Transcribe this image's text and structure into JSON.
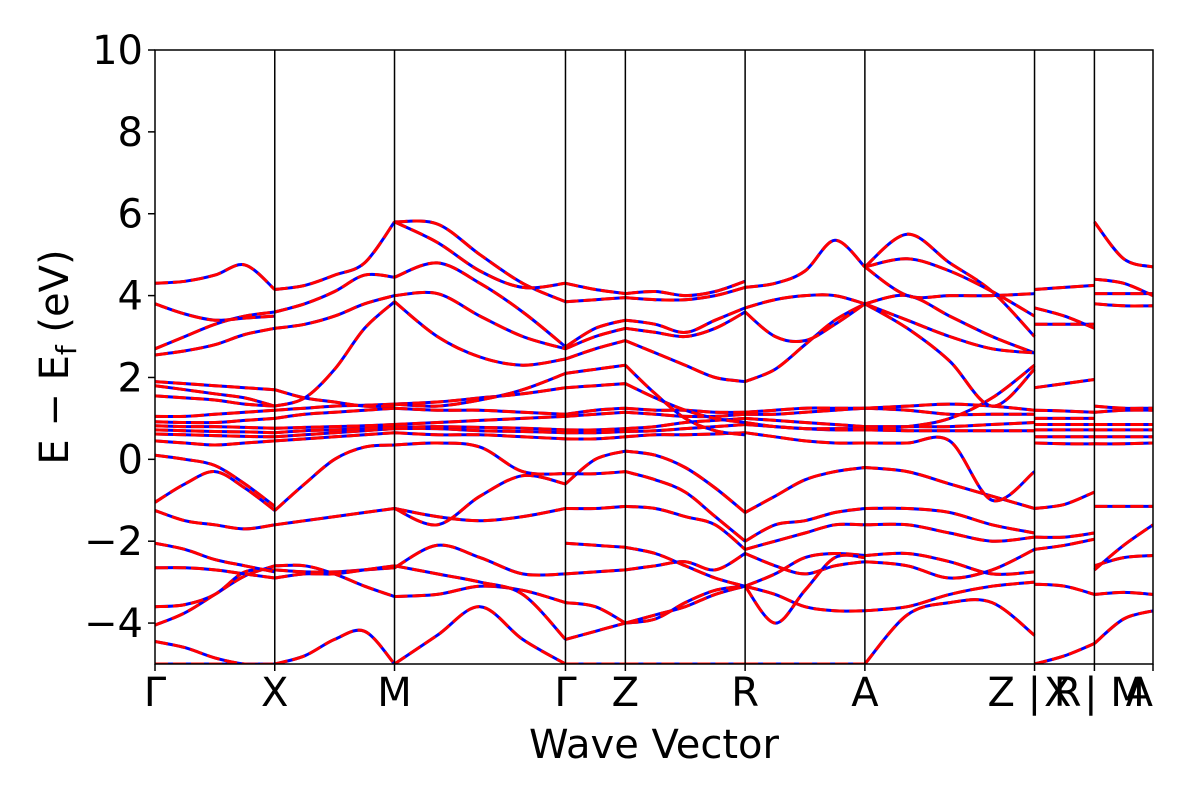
{
  "chart_data": {
    "type": "line",
    "title": "",
    "xlabel": "Wave Vector",
    "ylabel_parts": {
      "main": "E − E",
      "sub": "f",
      "unit": " (eV)"
    },
    "ylim": [
      -5,
      10
    ],
    "yticks": [
      {
        "value": -4,
        "label": "−4"
      },
      {
        "value": -2,
        "label": "−2"
      },
      {
        "value": 0,
        "label": "0"
      },
      {
        "value": 2,
        "label": "2"
      },
      {
        "value": 4,
        "label": "4"
      },
      {
        "value": 6,
        "label": "6"
      },
      {
        "value": 8,
        "label": "8"
      },
      {
        "value": 10,
        "label": "10"
      }
    ],
    "kpath": {
      "length": 1.0,
      "ticks": [
        {
          "pos": 0.0,
          "label": "Γ"
        },
        {
          "pos": 0.12,
          "label": "X"
        },
        {
          "pos": 0.24,
          "label": "M"
        },
        {
          "pos": 0.4113,
          "label": "Γ"
        },
        {
          "pos": 0.4713,
          "label": "Z"
        },
        {
          "pos": 0.5913,
          "label": "R"
        },
        {
          "pos": 0.7113,
          "label": "A"
        },
        {
          "pos": 0.8813,
          "label": "Z | R"
        },
        {
          "pos": 0.9413,
          "label": "X | M"
        },
        {
          "pos": 1.0,
          "label": "A"
        }
      ]
    },
    "band_style": {
      "solid_color": "#0000ff",
      "dashed_color": "#ff0000",
      "grid": false,
      "legend": "none"
    },
    "segments": [
      {
        "from": 0.0,
        "to": 0.12,
        "bands": [
          [
            -5.0,
            -5.0,
            -5.0,
            -5.0,
            -5.0
          ],
          [
            -4.45,
            -4.6,
            -4.85,
            -5.0,
            -5.0
          ],
          [
            -4.05,
            -3.75,
            -3.3,
            -2.85,
            -2.6
          ],
          [
            -3.6,
            -3.55,
            -3.3,
            -2.75,
            -2.7
          ],
          [
            -2.65,
            -2.65,
            -2.7,
            -2.8,
            -2.9
          ],
          [
            -2.05,
            -2.2,
            -2.45,
            -2.6,
            -2.75
          ],
          [
            -1.25,
            -1.5,
            -1.6,
            -1.7,
            -1.6
          ],
          [
            -1.05,
            -0.6,
            -0.3,
            -0.7,
            -1.25
          ],
          [
            0.1,
            0.0,
            -0.15,
            -0.6,
            -1.15
          ],
          [
            0.45,
            0.4,
            0.35,
            0.4,
            0.45
          ],
          [
            0.62,
            0.6,
            0.58,
            0.56,
            0.55
          ],
          [
            0.72,
            0.7,
            0.68,
            0.67,
            0.65
          ],
          [
            0.82,
            0.8,
            0.8,
            0.78,
            0.76
          ],
          [
            0.92,
            0.9,
            0.9,
            0.95,
            1.0
          ],
          [
            1.05,
            1.05,
            1.1,
            1.15,
            1.2
          ],
          [
            1.55,
            1.5,
            1.45,
            1.35,
            1.3
          ],
          [
            1.8,
            1.7,
            1.6,
            1.5,
            1.3
          ],
          [
            1.9,
            1.85,
            1.8,
            1.75,
            1.7
          ],
          [
            2.55,
            2.65,
            2.8,
            3.05,
            3.2
          ],
          [
            2.7,
            3.0,
            3.3,
            3.5,
            3.6
          ],
          [
            3.8,
            3.55,
            3.4,
            3.45,
            3.5
          ],
          [
            4.3,
            4.35,
            4.5,
            4.75,
            4.15
          ]
        ]
      },
      {
        "from": 0.12,
        "to": 0.24,
        "bands": [
          [
            -5.0,
            -4.8,
            -4.4,
            -4.2,
            -5.0
          ],
          [
            -2.6,
            -2.6,
            -2.8,
            -3.1,
            -3.35
          ],
          [
            -2.7,
            -2.75,
            -2.75,
            -2.7,
            -2.65
          ],
          [
            -2.9,
            -2.8,
            -2.8,
            -2.7,
            -2.6
          ],
          [
            -1.6,
            -1.5,
            -1.4,
            -1.3,
            -1.2
          ],
          [
            -1.25,
            -0.6,
            0.0,
            0.3,
            0.35
          ],
          [
            0.45,
            0.5,
            0.55,
            0.6,
            0.65
          ],
          [
            0.55,
            0.6,
            0.65,
            0.7,
            0.75
          ],
          [
            0.65,
            0.7,
            0.72,
            0.75,
            0.78
          ],
          [
            0.76,
            0.78,
            0.8,
            0.82,
            0.85
          ],
          [
            1.0,
            1.1,
            1.15,
            1.2,
            1.25
          ],
          [
            1.2,
            1.25,
            1.3,
            1.32,
            1.35
          ],
          [
            1.3,
            1.5,
            2.2,
            3.2,
            3.85
          ],
          [
            1.7,
            1.5,
            1.4,
            1.3,
            1.3
          ],
          [
            3.2,
            3.3,
            3.5,
            3.8,
            4.0
          ],
          [
            3.6,
            3.8,
            4.1,
            4.5,
            4.45
          ],
          [
            4.15,
            4.25,
            4.5,
            4.8,
            5.8
          ]
        ]
      },
      {
        "from": 0.24,
        "to": 0.4113,
        "bands": [
          [
            -5.0,
            -4.3,
            -3.6,
            -4.4,
            -5.0
          ],
          [
            -3.35,
            -3.3,
            -3.1,
            -3.2,
            -3.5
          ],
          [
            -2.65,
            -2.1,
            -2.4,
            -2.8,
            -2.8
          ],
          [
            -2.6,
            -2.8,
            -3.0,
            -3.3,
            -4.4
          ],
          [
            -1.2,
            -1.4,
            -1.5,
            -1.4,
            -1.2
          ],
          [
            -1.2,
            -1.6,
            -0.9,
            -0.4,
            -0.6
          ],
          [
            0.35,
            0.4,
            0.3,
            -0.3,
            -0.35
          ],
          [
            0.65,
            0.6,
            0.6,
            0.55,
            0.5
          ],
          [
            0.75,
            0.75,
            0.7,
            0.68,
            0.65
          ],
          [
            0.78,
            0.8,
            0.78,
            0.76,
            0.72
          ],
          [
            0.85,
            0.9,
            0.95,
            1.0,
            1.05
          ],
          [
            1.25,
            1.2,
            1.2,
            1.15,
            1.1
          ],
          [
            1.35,
            1.4,
            1.5,
            1.6,
            1.75
          ],
          [
            1.35,
            1.3,
            1.45,
            1.7,
            2.1
          ],
          [
            3.85,
            3.0,
            2.5,
            2.3,
            2.45
          ],
          [
            4.0,
            4.05,
            3.5,
            3.0,
            2.7
          ],
          [
            4.45,
            4.8,
            4.3,
            3.6,
            2.75
          ],
          [
            5.8,
            5.75,
            5.0,
            4.3,
            3.85
          ],
          [
            5.8,
            5.3,
            4.6,
            4.2,
            4.3
          ]
        ]
      },
      {
        "from": 0.4113,
        "to": 0.4713,
        "bands": [
          [
            -5.0,
            -5.0,
            -5.0
          ],
          [
            -4.4,
            -4.2,
            -4.0
          ],
          [
            -3.5,
            -3.6,
            -4.0
          ],
          [
            -2.8,
            -2.75,
            -2.7
          ],
          [
            -2.05,
            -2.1,
            -2.15
          ],
          [
            -1.2,
            -1.2,
            -1.15
          ],
          [
            -0.35,
            -0.35,
            -0.3
          ],
          [
            -0.6,
            0.0,
            0.2
          ],
          [
            0.5,
            0.5,
            0.55
          ],
          [
            0.65,
            0.65,
            0.68
          ],
          [
            0.72,
            0.72,
            0.75
          ],
          [
            1.05,
            1.1,
            1.15
          ],
          [
            1.1,
            1.2,
            1.25
          ],
          [
            1.75,
            1.8,
            1.85
          ],
          [
            2.1,
            2.2,
            2.3
          ],
          [
            2.45,
            2.7,
            2.9
          ],
          [
            2.7,
            3.0,
            3.2
          ],
          [
            2.75,
            3.2,
            3.4
          ],
          [
            3.85,
            3.9,
            3.95
          ],
          [
            4.3,
            4.15,
            4.05
          ]
        ]
      },
      {
        "from": 0.4713,
        "to": 0.5913,
        "bands": [
          [
            -5.0,
            -5.0,
            -5.0,
            -5.0,
            -5.0
          ],
          [
            -4.0,
            -3.9,
            -3.5,
            -3.2,
            -3.1
          ],
          [
            -4.0,
            -3.8,
            -3.6,
            -3.3,
            -3.1
          ],
          [
            -2.7,
            -2.6,
            -2.5,
            -2.7,
            -2.3
          ],
          [
            -2.15,
            -2.3,
            -2.6,
            -2.9,
            -3.1
          ],
          [
            -1.15,
            -1.2,
            -1.4,
            -1.6,
            -2.2
          ],
          [
            -0.3,
            -0.5,
            -0.8,
            -1.4,
            -2.0
          ],
          [
            0.2,
            0.1,
            -0.2,
            -0.7,
            -1.3
          ],
          [
            0.55,
            0.6,
            0.6,
            0.62,
            0.65
          ],
          [
            0.68,
            0.7,
            0.75,
            0.8,
            0.85
          ],
          [
            0.75,
            0.8,
            0.9,
            0.95,
            1.0
          ],
          [
            1.15,
            1.1,
            1.05,
            1.05,
            1.1
          ],
          [
            1.25,
            1.2,
            1.2,
            1.15,
            1.15
          ],
          [
            1.85,
            1.5,
            1.2,
            1.0,
            0.9
          ],
          [
            2.3,
            1.6,
            1.0,
            0.7,
            0.6
          ],
          [
            2.9,
            2.6,
            2.3,
            2.0,
            1.9
          ],
          [
            3.2,
            3.1,
            3.0,
            3.2,
            3.6
          ],
          [
            3.4,
            3.3,
            3.1,
            3.4,
            3.7
          ],
          [
            3.95,
            3.9,
            3.9,
            4.0,
            4.2
          ],
          [
            4.05,
            4.1,
            4.0,
            4.1,
            4.35
          ]
        ]
      },
      {
        "from": 0.5913,
        "to": 0.7113,
        "bands": [
          [
            -5.0,
            -5.0,
            -5.0,
            -5.0,
            -5.0
          ],
          [
            -3.1,
            -3.3,
            -3.6,
            -3.7,
            -3.7
          ],
          [
            -3.1,
            -2.8,
            -2.4,
            -2.3,
            -2.35
          ],
          [
            -2.3,
            -2.6,
            -2.8,
            -2.6,
            -2.5
          ],
          [
            -3.1,
            -4.0,
            -3.2,
            -2.4,
            -2.4
          ],
          [
            -2.2,
            -2.0,
            -1.8,
            -1.6,
            -1.6
          ],
          [
            -2.0,
            -1.6,
            -1.5,
            -1.3,
            -1.2
          ],
          [
            -1.3,
            -0.9,
            -0.5,
            -0.3,
            -0.2
          ],
          [
            0.65,
            0.55,
            0.45,
            0.4,
            0.4
          ],
          [
            0.85,
            0.8,
            0.75,
            0.72,
            0.72
          ],
          [
            1.0,
            0.95,
            0.9,
            0.85,
            0.8
          ],
          [
            1.1,
            1.1,
            1.15,
            1.2,
            1.25
          ],
          [
            1.15,
            1.2,
            1.25,
            1.25,
            1.25
          ],
          [
            0.9,
            0.8,
            0.75,
            0.75,
            0.75
          ],
          [
            1.9,
            2.2,
            2.8,
            3.4,
            3.8
          ],
          [
            3.6,
            3.0,
            2.9,
            3.3,
            3.8
          ],
          [
            3.7,
            3.9,
            4.0,
            4.0,
            3.8
          ],
          [
            4.2,
            4.3,
            4.6,
            5.35,
            4.7
          ]
        ]
      },
      {
        "from": 0.7113,
        "to": 0.8813,
        "bands": [
          [
            -5.0,
            -3.8,
            -3.5,
            -3.5,
            -4.3
          ],
          [
            -3.7,
            -3.6,
            -3.3,
            -3.1,
            -3.0
          ],
          [
            -2.35,
            -2.3,
            -2.5,
            -2.8,
            -2.75
          ],
          [
            -2.5,
            -2.6,
            -2.9,
            -2.7,
            -2.2
          ],
          [
            -1.6,
            -1.6,
            -1.8,
            -2.0,
            -1.9
          ],
          [
            -1.2,
            -1.2,
            -1.3,
            -1.6,
            -1.8
          ],
          [
            -0.2,
            -0.3,
            -0.6,
            -0.9,
            -1.2
          ],
          [
            0.4,
            0.4,
            0.45,
            -1.0,
            -0.3
          ],
          [
            0.72,
            0.7,
            0.7,
            0.7,
            0.7
          ],
          [
            0.8,
            0.8,
            0.8,
            0.85,
            0.9
          ],
          [
            1.25,
            1.2,
            1.1,
            1.1,
            1.1
          ],
          [
            1.25,
            1.3,
            1.35,
            1.3,
            1.2
          ],
          [
            0.75,
            0.8,
            1.0,
            1.5,
            2.3
          ],
          [
            3.8,
            3.2,
            2.4,
            1.3,
            2.2
          ],
          [
            3.8,
            4.0,
            3.5,
            3.0,
            2.6
          ],
          [
            3.8,
            3.4,
            3.0,
            2.7,
            2.6
          ],
          [
            4.7,
            5.5,
            4.8,
            4.1,
            3.0
          ],
          [
            4.7,
            4.9,
            4.6,
            4.1,
            3.5
          ],
          [
            4.7,
            4.0,
            4.0,
            4.0,
            4.05
          ]
        ]
      },
      {
        "from": 0.8813,
        "to": 0.9413,
        "bands": [
          [
            -5.0,
            -4.8,
            -4.5
          ],
          [
            -3.05,
            -3.1,
            -3.3
          ],
          [
            -2.2,
            -2.1,
            -1.95
          ],
          [
            -1.9,
            -1.9,
            -1.8
          ],
          [
            -1.2,
            -1.1,
            -0.8
          ],
          [
            0.4,
            0.38,
            0.38
          ],
          [
            0.55,
            0.55,
            0.55
          ],
          [
            0.72,
            0.72,
            0.72
          ],
          [
            0.85,
            0.85,
            0.85
          ],
          [
            1.0,
            1.0,
            1.0
          ],
          [
            1.2,
            1.18,
            1.15
          ],
          [
            1.75,
            1.85,
            1.95
          ],
          [
            3.3,
            3.3,
            3.3
          ],
          [
            3.7,
            3.5,
            3.2
          ],
          [
            4.15,
            4.2,
            4.25
          ]
        ]
      },
      {
        "from": 0.9413,
        "to": 1.0,
        "bands": [
          [
            -4.5,
            -3.9,
            -3.7
          ],
          [
            -3.3,
            -3.25,
            -3.3
          ],
          [
            -2.6,
            -2.4,
            -2.35
          ],
          [
            -2.7,
            -2.1,
            -1.6
          ],
          [
            -1.15,
            -1.15,
            -1.15
          ],
          [
            0.38,
            0.38,
            0.4
          ],
          [
            0.55,
            0.55,
            0.55
          ],
          [
            0.72,
            0.72,
            0.72
          ],
          [
            0.85,
            0.85,
            0.85
          ],
          [
            1.15,
            1.2,
            1.2
          ],
          [
            1.3,
            1.25,
            1.25
          ],
          [
            3.8,
            3.75,
            3.75
          ],
          [
            4.05,
            4.05,
            4.05
          ],
          [
            4.4,
            4.3,
            4.0
          ],
          [
            5.8,
            4.9,
            4.7
          ]
        ]
      }
    ]
  }
}
